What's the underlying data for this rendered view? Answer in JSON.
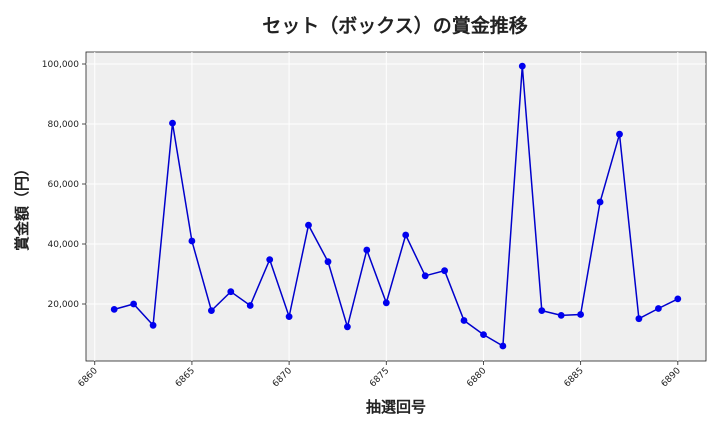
{
  "chart_data": {
    "type": "line",
    "title": "セット（ボックス）の賞金推移",
    "xlabel": "抽選回号",
    "ylabel": "賞金額（円）",
    "x": [
      6861,
      6862,
      6863,
      6864,
      6865,
      6866,
      6867,
      6868,
      6869,
      6870,
      6871,
      6872,
      6873,
      6874,
      6875,
      6876,
      6877,
      6878,
      6879,
      6880,
      6881,
      6882,
      6883,
      6884,
      6885,
      6886,
      6887,
      6888,
      6889,
      6890
    ],
    "series": [
      {
        "values": [
          18200,
          20000,
          12900,
          80300,
          41000,
          17800,
          24100,
          19500,
          34800,
          15800,
          46300,
          34100,
          12400,
          38000,
          20400,
          43000,
          29400,
          31100,
          14500,
          9800,
          6000,
          99300,
          17800,
          16200,
          16500,
          54000,
          76600,
          15100,
          18500,
          21700
        ]
      }
    ],
    "x_ticks": [
      "6860",
      "6865",
      "6870",
      "6875",
      "6880",
      "6885",
      "6890"
    ],
    "y_ticks": [
      "20,000",
      "40,000",
      "60,000",
      "80,000",
      "100,000"
    ],
    "xlim": [
      6859.55,
      6891.45
    ],
    "ylim": [
      1000,
      104000
    ],
    "grid": true,
    "colors": {
      "line": "#0000cc",
      "marker": "#0000ee",
      "plot_bg": "#efefef",
      "grid": "#ffffff"
    }
  }
}
